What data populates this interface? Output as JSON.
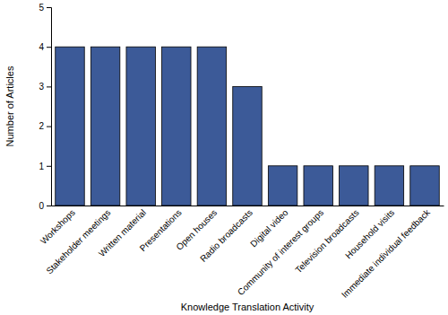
{
  "chart_data": {
    "type": "bar",
    "categories": [
      "Workshops",
      "Stakeholder meetings",
      "Written material",
      "Presentations",
      "Open houses",
      "Radio broadcasts",
      "Digital video",
      "Community of interest groups",
      "Television broadcasts",
      "Household visits",
      "Immediate individual feedback"
    ],
    "values": [
      4,
      4,
      4,
      4,
      4,
      3,
      1,
      1,
      1,
      1,
      1
    ],
    "color": "#3c5a98",
    "x_label": "Knowledge Translation Activity",
    "y_label": "Number of Articles",
    "ylim": [
      0,
      5
    ],
    "yticks": [
      0,
      1,
      2,
      3,
      4,
      5
    ],
    "grid": false
  }
}
